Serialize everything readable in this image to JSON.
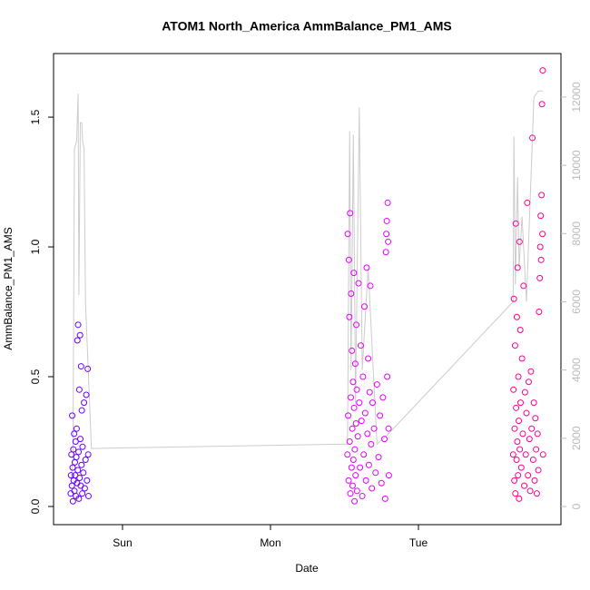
{
  "chart_data": {
    "type": "scatter",
    "title": "ATOM1 North_America AmmBalance_PM1_AMS",
    "x_label": "Date",
    "y_label": "AmmBalance_PM1_AMS",
    "xlim": [
      -0.466,
      2.963
    ],
    "xticks": [
      {
        "value": 0,
        "label": "Sun"
      },
      {
        "value": 1,
        "label": "Mon"
      },
      {
        "value": 2,
        "label": "Tue"
      }
    ],
    "ylim": [
      -0.07,
      1.745
    ],
    "yticks": [
      {
        "value": 0,
        "label": "0.0"
      },
      0.5,
      {
        "value": 1,
        "label": "1.0"
      },
      1.5
    ],
    "y2lim": [
      -532,
      13276
    ],
    "y2ticks": [
      0,
      2000,
      4000,
      6000,
      8000,
      10000,
      12000
    ],
    "y2color": "#bbbbbb",
    "series": [
      {
        "type": "scatter",
        "color": "#6a00ff",
        "x": [
          -0.35,
          -0.348,
          -0.345,
          -0.342,
          -0.34,
          -0.337,
          -0.335,
          -0.332,
          -0.33,
          -0.327,
          -0.325,
          -0.322,
          -0.32,
          -0.317,
          -0.315,
          -0.312,
          -0.31,
          -0.307,
          -0.305,
          -0.302,
          -0.3,
          -0.297,
          -0.295,
          -0.292,
          -0.29,
          -0.287,
          -0.285,
          -0.282,
          -0.28,
          -0.277,
          -0.275,
          -0.272,
          -0.27,
          -0.265,
          -0.26,
          -0.255,
          -0.25,
          -0.245,
          -0.24,
          -0.235,
          -0.232,
          -0.23
        ],
        "values": [
          0.05,
          0.12,
          0.2,
          0.08,
          0.35,
          0.15,
          0.02,
          0.22,
          0.1,
          0.28,
          0.06,
          0.17,
          0.12,
          0.25,
          0.04,
          0.19,
          0.3,
          0.09,
          0.64,
          0.14,
          0.7,
          0.21,
          0.03,
          0.45,
          0.11,
          0.66,
          0.26,
          0.08,
          0.54,
          0.16,
          0.37,
          0.05,
          0.23,
          0.13,
          0.4,
          0.07,
          0.18,
          0.43,
          0.1,
          0.53,
          0.2,
          0.04
        ]
      },
      {
        "type": "scatter",
        "color": "#e600ff",
        "x": [
          1.52,
          1.522,
          1.525,
          1.528,
          1.53,
          1.533,
          1.535,
          1.538,
          1.54,
          1.543,
          1.545,
          1.548,
          1.55,
          1.553,
          1.555,
          1.558,
          1.56,
          1.563,
          1.565,
          1.568,
          1.57,
          1.573,
          1.575,
          1.578,
          1.58,
          1.583,
          1.585,
          1.59,
          1.595,
          1.6,
          1.605,
          1.61,
          1.615,
          1.62,
          1.625,
          1.63,
          1.635,
          1.64,
          1.645,
          1.65,
          1.655,
          1.66,
          1.665,
          1.67,
          1.675,
          1.68,
          1.685,
          1.69,
          1.7,
          1.71,
          1.72,
          1.73,
          1.74,
          1.75,
          1.76,
          1.77,
          1.775,
          1.78,
          1.783,
          1.786,
          1.789,
          1.792,
          1.795,
          1.798,
          1.8
        ],
        "values": [
          0.2,
          1.05,
          0.35,
          0.1,
          0.95,
          0.73,
          0.25,
          1.13,
          0.05,
          0.42,
          0.82,
          0.15,
          0.6,
          0.3,
          0.08,
          0.48,
          0.18,
          0.9,
          0.38,
          0.02,
          0.22,
          0.55,
          0.12,
          0.32,
          0.7,
          0.45,
          0.06,
          0.27,
          0.86,
          0.4,
          0.15,
          0.62,
          0.33,
          0.04,
          0.5,
          0.2,
          0.77,
          0.36,
          0.1,
          0.92,
          0.28,
          0.57,
          0.16,
          0.44,
          0.85,
          0.24,
          0.07,
          0.4,
          0.3,
          0.13,
          0.47,
          0.19,
          0.35,
          0.09,
          0.42,
          0.26,
          0.03,
          0.98,
          1.05,
          1.1,
          0.5,
          1.17,
          1.02,
          0.3,
          0.12
        ]
      },
      {
        "type": "scatter",
        "color": "#ff0090",
        "x": [
          2.64,
          2.642,
          2.645,
          2.648,
          2.65,
          2.653,
          2.655,
          2.658,
          2.66,
          2.663,
          2.665,
          2.668,
          2.67,
          2.673,
          2.675,
          2.678,
          2.68,
          2.683,
          2.685,
          2.688,
          2.69,
          2.695,
          2.7,
          2.705,
          2.71,
          2.715,
          2.72,
          2.725,
          2.73,
          2.735,
          2.74,
          2.745,
          2.75,
          2.755,
          2.76,
          2.765,
          2.77,
          2.775,
          2.78,
          2.785,
          2.79,
          2.795,
          2.8,
          2.805,
          2.81,
          2.815,
          2.82,
          2.823,
          2.826,
          2.829,
          2.832,
          2.835,
          2.838,
          2.84,
          2.842
        ],
        "values": [
          0.2,
          0.45,
          0.8,
          0.1,
          0.3,
          0.62,
          0.05,
          1.09,
          0.38,
          0.18,
          0.73,
          0.25,
          0.92,
          0.12,
          0.5,
          0.33,
          0.03,
          1.02,
          0.22,
          0.68,
          0.4,
          0.15,
          0.57,
          0.28,
          0.85,
          0.08,
          0.44,
          0.2,
          0.36,
          1.17,
          0.12,
          0.48,
          0.26,
          0.06,
          0.52,
          0.3,
          1.42,
          0.18,
          0.4,
          0.1,
          0.34,
          0.22,
          0.05,
          0.28,
          0.14,
          0.75,
          0.88,
          1.0,
          1.12,
          0.95,
          1.2,
          1.55,
          1.05,
          1.68,
          0.2
        ]
      },
      {
        "type": "line",
        "axis": "y2",
        "color": "#cccccc",
        "x": [
          -0.35,
          -0.335,
          -0.325,
          -0.31,
          -0.3,
          -0.295,
          -0.285,
          -0.275,
          -0.27,
          -0.26,
          -0.25,
          -0.21,
          1.52,
          1.535,
          1.545,
          1.56,
          1.575,
          1.6,
          1.62,
          1.66,
          1.7,
          1.72,
          1.79,
          2.64,
          2.645,
          2.655,
          2.67,
          2.68,
          2.7,
          2.73,
          2.78,
          2.81,
          2.84
        ],
        "values": [
          600,
          1500,
          10500,
          10700,
          12100,
          6200,
          11250,
          11250,
          10700,
          10500,
          6000,
          1700,
          1830,
          11000,
          4000,
          10900,
          3000,
          11700,
          4000,
          7000,
          3500,
          1830,
          2100,
          6000,
          10850,
          6500,
          9650,
          7000,
          8500,
          6000,
          12000,
          12180,
          12180
        ]
      }
    ]
  }
}
